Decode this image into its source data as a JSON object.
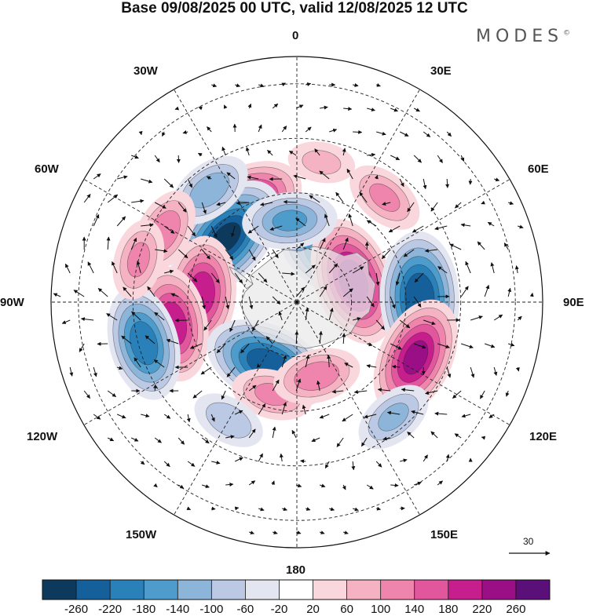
{
  "title": "Base 09/08/2025 00 UTC, valid 12/08/2025 12 UTC",
  "brand": "MODES",
  "brand_mark": "©",
  "longitude_labels": {
    "lon_0": "0",
    "lon_30e": "30E",
    "lon_60e": "60E",
    "lon_90e": "90E",
    "lon_120e": "120E",
    "lon_150e": "150E",
    "lon_180": "180",
    "lon_150w": "150W",
    "lon_120w": "120W",
    "lon_90w": "90W",
    "lon_60w": "60W",
    "lon_30w": "30W"
  },
  "reference_vector": "30",
  "colorbar": {
    "colors": [
      "#0d3a5c",
      "#15609a",
      "#2a80b8",
      "#4d9ccb",
      "#8cb5d9",
      "#bcc9e4",
      "#e3e5f1",
      "#ffffff",
      "#f9d7dc",
      "#f5b2c2",
      "#ef85ac",
      "#e2569d",
      "#c61e8c",
      "#9a0f86",
      "#5b0f78"
    ],
    "ticks": [
      "-260",
      "-220",
      "-180",
      "-140",
      "-100",
      "-60",
      "-20",
      "20",
      "60",
      "100",
      "140",
      "180",
      "220",
      "260"
    ]
  },
  "anomalies": [
    {
      "lon": 35,
      "colat": 20,
      "value": -180
    },
    {
      "lon": 10,
      "colat": 52,
      "value": 60
    },
    {
      "lon": -30,
      "colat": 40,
      "value": 240
    },
    {
      "lon": -48,
      "colat": 35,
      "value": -260
    },
    {
      "lon": -38,
      "colat": 52,
      "value": -120
    },
    {
      "lon": -62,
      "colat": 55,
      "value": 120
    },
    {
      "lon": -85,
      "colat": 35,
      "value": 200
    },
    {
      "lon": -100,
      "colat": 46,
      "value": 200
    },
    {
      "lon": -105,
      "colat": 58,
      "value": -200
    },
    {
      "lon": -75,
      "colat": 60,
      "value": 100
    },
    {
      "lon": -155,
      "colat": 25,
      "value": -240
    },
    {
      "lon": -165,
      "colat": 35,
      "value": 100
    },
    {
      "lon": 70,
      "colat": 22,
      "value": 240
    },
    {
      "lon": 88,
      "colat": 45,
      "value": -250
    },
    {
      "lon": 115,
      "colat": 48,
      "value": 220
    },
    {
      "lon": 140,
      "colat": 55,
      "value": -100
    },
    {
      "lon": 165,
      "colat": 28,
      "value": 120
    },
    {
      "lon": 40,
      "colat": 50,
      "value": 100
    },
    {
      "lon": -5,
      "colat": 30,
      "value": -140
    },
    {
      "lon": -150,
      "colat": 50,
      "value": -80
    }
  ],
  "map": {
    "projection": "south polar stereographic",
    "continent": "Antarctica"
  }
}
